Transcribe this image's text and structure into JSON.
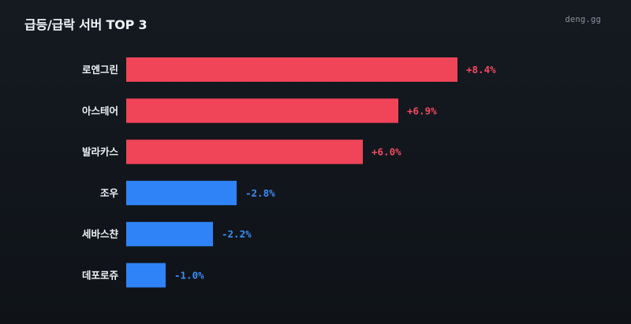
{
  "header": {
    "title": "급등/급락 서버 TOP 3",
    "brand": "deng.gg"
  },
  "colors": {
    "up": "#f04458",
    "down": "#2f83f7",
    "up_text": "#f34a5f",
    "down_text": "#3c8cf8"
  },
  "chart_data": {
    "type": "bar",
    "orientation": "horizontal",
    "categories": [
      "로엔그린",
      "아스테어",
      "발라카스",
      "조우",
      "세바스챤",
      "데포로쥬"
    ],
    "values": [
      8.4,
      6.9,
      6.0,
      -2.8,
      -2.2,
      -1.0
    ],
    "value_labels": [
      "+8.4%",
      "+6.9%",
      "+6.0%",
      "-2.8%",
      "-2.2%",
      "-1.0%"
    ],
    "unit": "%",
    "grid": false,
    "legend": "none"
  }
}
